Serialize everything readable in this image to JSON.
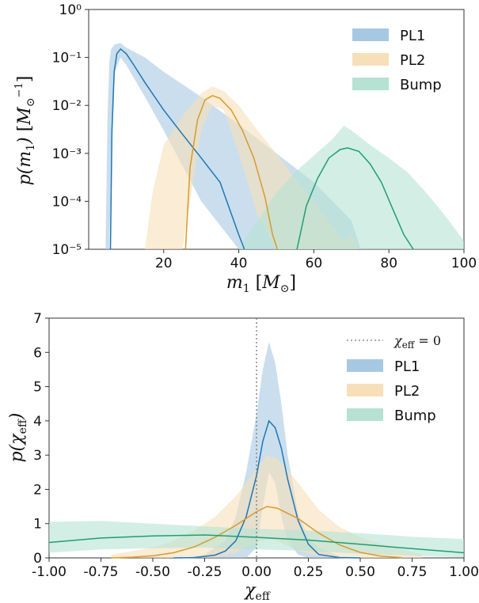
{
  "chart_data": [
    {
      "type": "area",
      "xlabel": "m_1 [M_⊙]",
      "ylabel": "p(m_1) [M_⊙^-1]",
      "xlim": [
        0,
        100
      ],
      "ylim": [
        1e-05,
        1
      ],
      "yscale": "log",
      "xticks": [
        "20",
        "40",
        "60",
        "80",
        "100"
      ],
      "xtick_values": [
        20,
        40,
        60,
        80,
        100
      ],
      "yticks": [
        "10⁰",
        "10⁻¹",
        "10⁻²",
        "10⁻³",
        "10⁻⁴",
        "10⁻⁵"
      ],
      "ytick_values": [
        1,
        0.1,
        0.01,
        0.001,
        0.0001,
        1e-05
      ],
      "legend": "top-right",
      "series": [
        {
          "name": "PL1",
          "color": "#1f77b4",
          "band_color": "#a6c8e3",
          "median": {
            "x": [
              5.8,
              6.2,
              6.8,
              7.5,
              8.5,
              10,
              12,
              15,
              20,
              25,
              30,
              35,
              40,
              41.5
            ],
            "y": [
              1e-05,
              0.003,
              0.05,
              0.12,
              0.15,
              0.12,
              0.07,
              0.03,
              0.008,
              0.0025,
              0.0008,
              0.00025,
              2e-05,
              1e-05
            ]
          },
          "band_x": [
            4.5,
            5.0,
            5.5,
            6.0,
            7.0,
            8.5,
            10,
            15,
            20,
            30,
            40,
            50,
            60,
            70,
            72.5
          ],
          "band_lower": [
            1e-05,
            1e-05,
            1e-05,
            0.0005,
            0.05,
            0.1,
            0.07,
            0.015,
            0.003,
            0.0001,
            1e-05,
            1e-05,
            1e-05,
            1e-05,
            1e-05
          ],
          "band_upper": [
            1e-05,
            0.005,
            0.08,
            0.15,
            0.19,
            0.2,
            0.16,
            0.1,
            0.05,
            0.015,
            0.004,
            0.001,
            0.00025,
            4e-05,
            1e-05
          ]
        },
        {
          "name": "PL2",
          "color": "#d99a2b",
          "band_color": "#f6dfb9",
          "median": {
            "x": [
              25.8,
              27,
              29,
              31,
              33,
              35,
              38,
              41,
              44,
              47,
              49,
              50.3
            ],
            "y": [
              1e-05,
              0.0005,
              0.005,
              0.013,
              0.016,
              0.014,
              0.008,
              0.003,
              0.0008,
              0.00012,
              2e-05,
              1e-05
            ]
          },
          "band_x": [
            15,
            17,
            20,
            25,
            30,
            33,
            36,
            40,
            45,
            50,
            55,
            60,
            65,
            68,
            70,
            72
          ],
          "band_lower": [
            1e-05,
            1e-05,
            1e-05,
            1e-05,
            0.003,
            0.01,
            0.008,
            0.001,
            5e-05,
            1e-05,
            1e-05,
            1e-05,
            1e-05,
            1e-05,
            1e-05,
            1e-05
          ],
          "band_upper": [
            1e-05,
            0.00015,
            0.0015,
            0.006,
            0.018,
            0.025,
            0.02,
            0.01,
            0.003,
            0.001,
            0.0003,
            0.0001,
            3e-05,
            1.5e-05,
            2e-05,
            1e-05
          ]
        },
        {
          "name": "Bump",
          "color": "#1f9e74",
          "band_color": "#b6e2d3",
          "median": {
            "x": [
              55.5,
              58,
              61,
              64,
              67,
              69,
              72,
              75,
              78,
              81,
              84,
              86.5
            ],
            "y": [
              1e-05,
              8e-05,
              0.0003,
              0.0008,
              0.0012,
              0.0013,
              0.0011,
              0.0006,
              0.00025,
              7e-05,
              2e-05,
              1e-05
            ]
          },
          "band_x": [
            40,
            45,
            50,
            55,
            60,
            65,
            68,
            70,
            75,
            80,
            85,
            90,
            95,
            100
          ],
          "band_lower": [
            1e-05,
            1e-05,
            1e-05,
            1e-05,
            1e-05,
            1e-05,
            1e-05,
            1e-05,
            1e-05,
            1e-05,
            1e-05,
            1e-05,
            1e-05,
            1e-05
          ],
          "band_upper": [
            1e-05,
            4e-05,
            0.00015,
            0.0004,
            0.0009,
            0.002,
            0.0038,
            0.003,
            0.0015,
            0.0008,
            0.0004,
            0.00015,
            5e-05,
            1.5e-05
          ]
        }
      ]
    },
    {
      "type": "area",
      "xlabel": "χ_eff",
      "ylabel": "p(χ_eff)",
      "xlim": [
        -1,
        1
      ],
      "ylim": [
        0,
        7
      ],
      "xticks": [
        "-1.00",
        "-0.75",
        "-0.50",
        "-0.25",
        "0.00",
        "0.25",
        "0.50",
        "0.75",
        "1.00"
      ],
      "xtick_values": [
        -1,
        -0.75,
        -0.5,
        -0.25,
        0,
        0.25,
        0.5,
        0.75,
        1
      ],
      "yticks": [
        "0",
        "1",
        "2",
        "3",
        "4",
        "5",
        "6",
        "7"
      ],
      "ytick_values": [
        0,
        1,
        2,
        3,
        4,
        5,
        6,
        7
      ],
      "legend": "top-right",
      "vline": {
        "x": 0,
        "label": "χ_eff = 0",
        "color": "#777777"
      },
      "series": [
        {
          "name": "PL1",
          "color": "#1f77b4",
          "band_color": "#a6c8e3",
          "median": {
            "x": [
              -0.4,
              -0.3,
              -0.2,
              -0.15,
              -0.1,
              -0.05,
              0,
              0.03,
              0.06,
              0.09,
              0.12,
              0.15,
              0.2,
              0.25,
              0.3,
              0.4,
              0.5
            ],
            "y": [
              0,
              0.01,
              0.08,
              0.2,
              0.5,
              1.2,
              2.4,
              3.4,
              4.0,
              3.8,
              3.2,
              2.3,
              1.1,
              0.4,
              0.1,
              0.01,
              0
            ]
          },
          "band_x": [
            -0.35,
            -0.25,
            -0.15,
            -0.1,
            -0.05,
            0,
            0.03,
            0.06,
            0.09,
            0.12,
            0.15,
            0.2,
            0.25,
            0.3,
            0.4,
            0.5
          ],
          "band_lower": [
            0,
            0,
            0,
            0,
            0,
            0.3,
            1.5,
            2.5,
            2.2,
            1.2,
            0.5,
            0.1,
            0,
            0,
            0,
            0
          ],
          "band_upper": [
            0,
            0.1,
            0.5,
            1.2,
            2.5,
            4.2,
            5.5,
            6.3,
            5.7,
            4.5,
            3.0,
            1.3,
            0.6,
            0.3,
            0.05,
            0
          ]
        },
        {
          "name": "PL2",
          "color": "#d99a2b",
          "band_color": "#f6dfb9",
          "median": {
            "x": [
              -0.7,
              -0.6,
              -0.5,
              -0.4,
              -0.3,
              -0.2,
              -0.1,
              0,
              0.05,
              0.1,
              0.2,
              0.3,
              0.4,
              0.5,
              0.6,
              0.7
            ],
            "y": [
              0,
              0.02,
              0.06,
              0.15,
              0.32,
              0.6,
              0.95,
              1.35,
              1.5,
              1.45,
              1.15,
              0.72,
              0.38,
              0.16,
              0.05,
              0.01
            ]
          },
          "band_x": [
            -0.7,
            -0.5,
            -0.4,
            -0.3,
            -0.2,
            -0.1,
            0,
            0.05,
            0.1,
            0.2,
            0.3,
            0.4,
            0.5,
            0.6,
            0.7,
            0.8
          ],
          "band_lower": [
            0,
            0,
            0,
            0,
            0.02,
            0.15,
            0.45,
            0.55,
            0.5,
            0.2,
            0.05,
            0,
            0,
            0,
            0,
            0
          ],
          "band_upper": [
            0.1,
            0.3,
            0.5,
            0.8,
            1.2,
            1.8,
            2.6,
            3.0,
            2.9,
            2.2,
            1.4,
            0.9,
            0.6,
            0.4,
            0.25,
            0.1
          ]
        },
        {
          "name": "Bump",
          "color": "#1f9e74",
          "band_color": "#b6e2d3",
          "median": {
            "x": [
              -1,
              -0.75,
              -0.5,
              -0.25,
              0,
              0.25,
              0.5,
              0.75,
              1
            ],
            "y": [
              0.45,
              0.58,
              0.64,
              0.67,
              0.6,
              0.52,
              0.4,
              0.27,
              0.15
            ]
          },
          "band_x": [
            -1,
            -0.75,
            -0.5,
            -0.25,
            0,
            0.25,
            0.5,
            0.75,
            1
          ],
          "band_lower": [
            0.15,
            0.25,
            0.28,
            0.3,
            0.25,
            0.2,
            0.12,
            0.06,
            0.02
          ],
          "band_upper": [
            1.05,
            1.08,
            1.0,
            0.92,
            0.85,
            0.8,
            0.72,
            0.62,
            0.55
          ]
        }
      ]
    }
  ]
}
